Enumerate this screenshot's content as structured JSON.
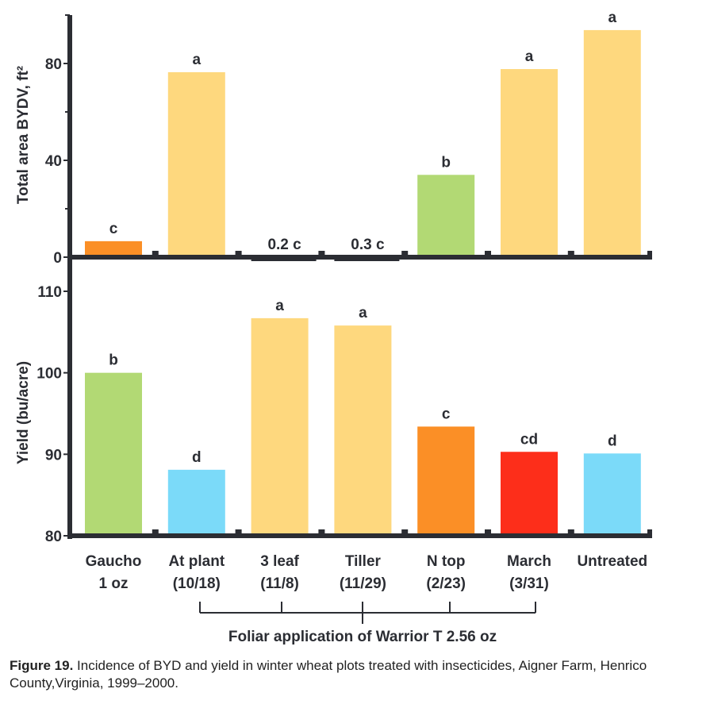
{
  "chart_data": [
    {
      "type": "bar",
      "ylabel": "Total area BYDV, ft²",
      "ylim": [
        0,
        100
      ],
      "yticks": [
        0,
        40,
        80
      ],
      "minor_yticks": [
        20,
        60,
        100
      ],
      "categories": [
        "Gaucho 1 oz",
        "At plant (10/18)",
        "3 leaf (11/8)",
        "Tiller (11/29)",
        "N top (2/23)",
        "March (3/31)",
        "Untreated"
      ],
      "values": [
        6.6,
        76.4,
        0.2,
        0.3,
        34.0,
        77.7,
        93.8
      ],
      "data_labels": [
        "c",
        "a",
        "0.2 c",
        "0.3 c",
        "b",
        "a",
        "a"
      ],
      "colors": [
        "#fb8f26",
        "#fed87e",
        "#fed87e",
        "#fed87e",
        "#b2d974",
        "#fed87e",
        "#fed87e"
      ],
      "grid": false
    },
    {
      "type": "bar",
      "ylabel": "Yield (bu/acre)",
      "ylim": [
        80,
        110
      ],
      "yticks": [
        80,
        90,
        100,
        110
      ],
      "categories": [
        "Gaucho 1 oz",
        "At plant (10/18)",
        "3 leaf (11/8)",
        "Tiller (11/29)",
        "N top (2/23)",
        "March (3/31)",
        "Untreated"
      ],
      "values": [
        100.0,
        88.1,
        106.7,
        105.8,
        93.4,
        90.3,
        90.1
      ],
      "data_labels": [
        "b",
        "d",
        "a",
        "a",
        "c",
        "cd",
        "d"
      ],
      "colors": [
        "#b2d974",
        "#7bdaf9",
        "#fed87e",
        "#fed87e",
        "#fb8f26",
        "#fd2e1a",
        "#7bdaf9"
      ],
      "grid": false
    }
  ],
  "x_category_lines": [
    [
      "Gaucho",
      "1 oz"
    ],
    [
      "At plant",
      "(10/18)"
    ],
    [
      "3 leaf",
      "(11/8)"
    ],
    [
      "Tiller",
      "(11/29)"
    ],
    [
      "N top",
      "(2/23)"
    ],
    [
      "March",
      "(3/31)"
    ],
    [
      "Untreated",
      ""
    ]
  ],
  "group_label": "Foliar application of Warrior T 2.56 oz",
  "caption": {
    "label": "Figure 19.",
    "text": " Incidence of BYD and yield in winter wheat plots treated with insecticides, Aigner Farm, Henrico County,Virginia, 1999–2000."
  },
  "axis_color": "#2b2d33"
}
